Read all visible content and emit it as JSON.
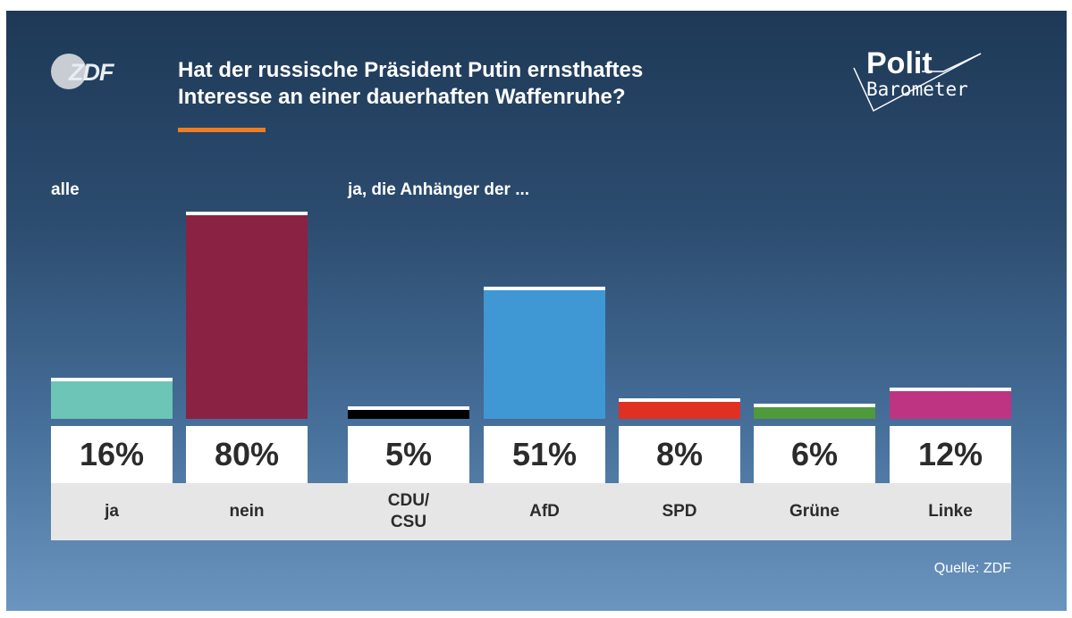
{
  "header": {
    "brand": "ZDF",
    "title_line1": "Hat der russische Präsident Putin ernsthaftes",
    "title_line2": "Interesse an einer dauerhaften Waffenruhe?",
    "logo_line1": "Polit",
    "logo_line2": "Barometer"
  },
  "groups": {
    "all": "alle",
    "supporters": "ja, die Anhänger der ..."
  },
  "chart_data": {
    "type": "bar",
    "title": "Hat der russische Präsident Putin ernsthaftes Interesse an einer dauerhaften Waffenruhe?",
    "ylabel": "",
    "xlabel": "",
    "ylim": [
      0,
      100
    ],
    "unit": "%",
    "bars": [
      {
        "group": "alle",
        "category": "ja",
        "value": 16,
        "label": "16%",
        "color": "#6cc5b6"
      },
      {
        "group": "alle",
        "category": "nein",
        "value": 80,
        "label": "80%",
        "color": "#8a2243"
      },
      {
        "group": "ja, die Anhänger der ...",
        "category": "CDU/\nCSU",
        "value": 5,
        "label": "5%",
        "color": "#000000"
      },
      {
        "group": "ja, die Anhänger der ...",
        "category": "AfD",
        "value": 51,
        "label": "51%",
        "color": "#3f98d3"
      },
      {
        "group": "ja, die Anhänger der ...",
        "category": "SPD",
        "value": 8,
        "label": "8%",
        "color": "#e03022"
      },
      {
        "group": "ja, die Anhänger der ...",
        "category": "Grüne",
        "value": 6,
        "label": "6%",
        "color": "#4f9a3b"
      },
      {
        "group": "ja, die Anhänger der ...",
        "category": "Linke",
        "value": 12,
        "label": "12%",
        "color": "#be3482"
      }
    ]
  },
  "footer": {
    "source": "Quelle: ZDF"
  }
}
